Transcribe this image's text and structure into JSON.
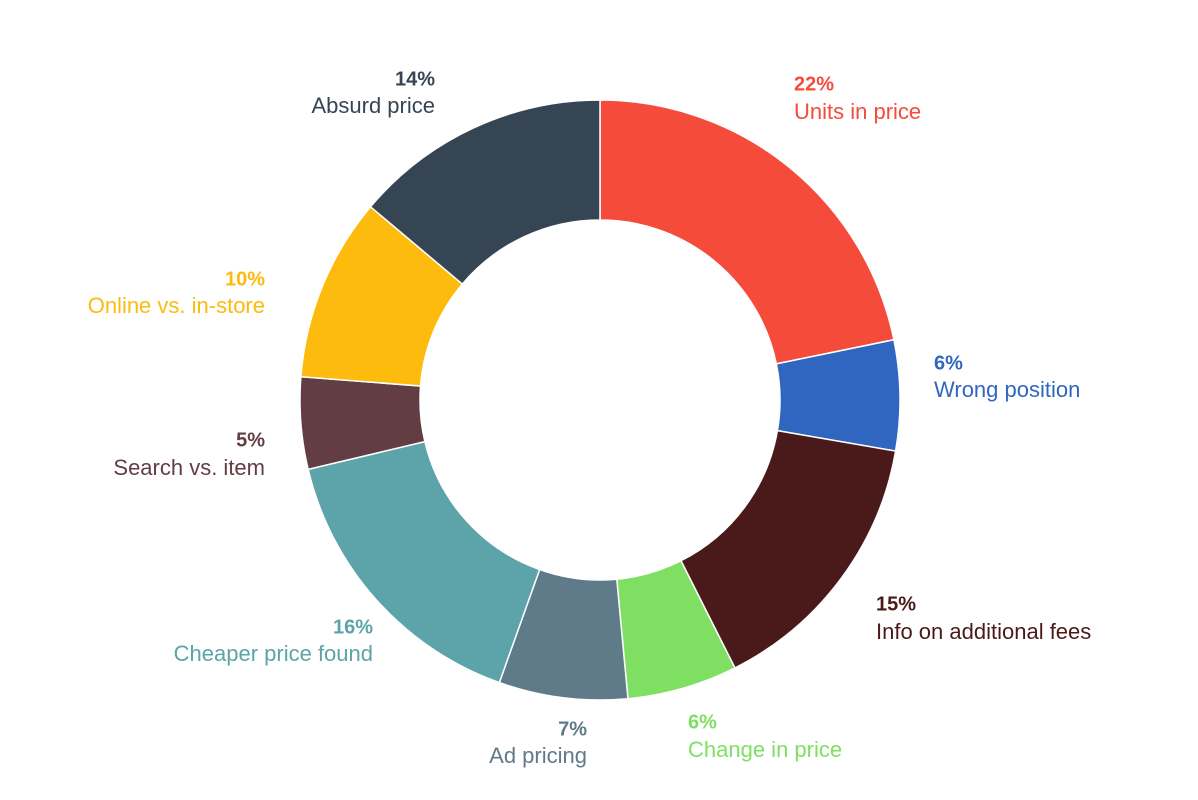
{
  "chart_data": {
    "type": "donut",
    "categories": [
      "Units in price",
      "Wrong position",
      "Info on additional fees",
      "Change in price",
      "Ad pricing",
      "Cheaper price found",
      "Search vs. item",
      "Online vs. in-store",
      "Absurd price"
    ],
    "values": [
      22,
      6,
      15,
      6,
      7,
      16,
      5,
      10,
      14
    ],
    "value_labels": [
      "22%",
      "6%",
      "15%",
      "6%",
      "7%",
      "16%",
      "5%",
      "10%",
      "14%"
    ],
    "colors": [
      "#f44b3b",
      "#3066c0",
      "#4a1a1b",
      "#7fdf62",
      "#5f7a88",
      "#5ca4a9",
      "#633d44",
      "#fdbb0e",
      "#364554"
    ]
  }
}
